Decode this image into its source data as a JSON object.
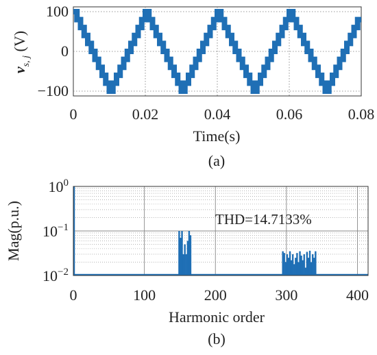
{
  "chart_data": [
    {
      "type": "line",
      "panel_caption": "(a)",
      "xlabel": "Time(s)",
      "ylabel": {
        "symbol": "v",
        "subscript": "s, j",
        "unit": " (V)"
      },
      "xlim": [
        0,
        0.08
      ],
      "ylim": [
        -112,
        112
      ],
      "xticks": [
        0,
        0.02,
        0.04,
        0.06,
        0.08
      ],
      "xtick_labels": [
        "0",
        "0.02",
        "0.04",
        "0.06",
        "0.08"
      ],
      "yticks": [
        -100,
        0,
        100
      ],
      "ytick_labels": [
        "−100",
        "0",
        "100"
      ],
      "grid": true,
      "series": [
        {
          "color": "#1f6fb5",
          "waveform": "staircase triangular",
          "period": 0.02,
          "amplitude": 100,
          "levels_per_slope": 10,
          "x": [
            0,
            0.01,
            0.02,
            0.03,
            0.04,
            0.05,
            0.06,
            0.07,
            0.08
          ],
          "y": [
            100,
            -100,
            100,
            -100,
            100,
            -100,
            100,
            -100,
            100
          ]
        }
      ]
    },
    {
      "type": "bar",
      "panel_caption": "(b)",
      "xlabel": "Harmonic order",
      "ylabel": "Mag(p.u.)",
      "xlim": [
        0,
        415
      ],
      "ylim": [
        0.01,
        1
      ],
      "yscale": "log",
      "xticks": [
        0,
        100,
        200,
        300,
        400
      ],
      "xtick_labels": [
        "0",
        "100",
        "200",
        "300",
        "400"
      ],
      "yticks": [
        0.01,
        0.1,
        1
      ],
      "ytick_labels": [
        {
          "base": "10",
          "exp": "−2"
        },
        {
          "base": "10",
          "exp": "−1"
        },
        {
          "base": "10",
          "exp": "0"
        }
      ],
      "grid": true,
      "annotation": "THD=14.7133%",
      "color": "#1f6fb5",
      "fundamental": {
        "order": 1,
        "value": 1
      },
      "harmonics": [
        {
          "order": 149,
          "value": 0.1
        },
        {
          "order": 151,
          "value": 0.07
        },
        {
          "order": 153,
          "value": 0.1
        },
        {
          "order": 155,
          "value": 0.03
        },
        {
          "order": 157,
          "value": 0.05
        },
        {
          "order": 159,
          "value": 0.03
        },
        {
          "order": 161,
          "value": 0.06
        },
        {
          "order": 163,
          "value": 0.1
        },
        {
          "order": 165,
          "value": 0.08
        },
        {
          "order": 295,
          "value": 0.035
        },
        {
          "order": 297,
          "value": 0.032
        },
        {
          "order": 299,
          "value": 0.02
        },
        {
          "order": 301,
          "value": 0.03
        },
        {
          "order": 303,
          "value": 0.025
        },
        {
          "order": 305,
          "value": 0.035
        },
        {
          "order": 307,
          "value": 0.022
        },
        {
          "order": 309,
          "value": 0.03
        },
        {
          "order": 311,
          "value": 0.018
        },
        {
          "order": 313,
          "value": 0.025
        },
        {
          "order": 315,
          "value": 0.032
        },
        {
          "order": 317,
          "value": 0.02
        },
        {
          "order": 319,
          "value": 0.035
        },
        {
          "order": 321,
          "value": 0.028
        },
        {
          "order": 323,
          "value": 0.022
        },
        {
          "order": 325,
          "value": 0.03
        },
        {
          "order": 327,
          "value": 0.015
        },
        {
          "order": 329,
          "value": 0.034
        },
        {
          "order": 331,
          "value": 0.025
        },
        {
          "order": 333,
          "value": 0.036
        },
        {
          "order": 335,
          "value": 0.02
        },
        {
          "order": 337,
          "value": 0.03
        },
        {
          "order": 339,
          "value": 0.025
        },
        {
          "order": 341,
          "value": 0.035
        }
      ]
    }
  ]
}
